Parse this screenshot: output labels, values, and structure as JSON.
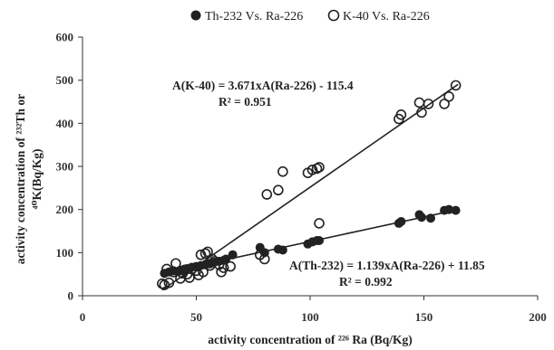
{
  "chart_data": {
    "type": "scatter",
    "xlabel": "activity concentration of ²²⁶ Ra (Bq/Kg)",
    "ylabel_line1": "activity concentration of ²³²Th or",
    "ylabel_line2": "⁴⁰K(Bq/Kg)",
    "xlim": [
      0,
      200
    ],
    "ylim": [
      0,
      600
    ],
    "xticks": [
      "0",
      "50",
      "100",
      "150",
      "200"
    ],
    "yticks": [
      "0",
      "100",
      "200",
      "300",
      "400",
      "500",
      "600"
    ],
    "legend_position": "top",
    "series": [
      {
        "name": "Th-232 Vs. Ra-226",
        "marker": "filled-circle",
        "color": "#222222",
        "trendline": {
          "slope": 1.139,
          "intercept": 11.85,
          "x_range": [
            35,
            164
          ]
        },
        "equation": "A(Th-232) = 1.139xA(Ra-226) + 11.85",
        "r2": "R² = 0.992",
        "points": [
          [
            36,
            52
          ],
          [
            38,
            55
          ],
          [
            40,
            58
          ],
          [
            42,
            56
          ],
          [
            44,
            60
          ],
          [
            45,
            62
          ],
          [
            46,
            63
          ],
          [
            48,
            66
          ],
          [
            50,
            68
          ],
          [
            52,
            70
          ],
          [
            54,
            72
          ],
          [
            55,
            75
          ],
          [
            56,
            74
          ],
          [
            58,
            78
          ],
          [
            60,
            80
          ],
          [
            62,
            82
          ],
          [
            63,
            85
          ],
          [
            66,
            95
          ],
          [
            78,
            112
          ],
          [
            80,
            100
          ],
          [
            86,
            108
          ],
          [
            88,
            106
          ],
          [
            99,
            120
          ],
          [
            101,
            125
          ],
          [
            103,
            128
          ],
          [
            104,
            128
          ],
          [
            139,
            168
          ],
          [
            140,
            172
          ],
          [
            148,
            188
          ],
          [
            149,
            182
          ],
          [
            153,
            180
          ],
          [
            159,
            198
          ],
          [
            161,
            200
          ],
          [
            164,
            198
          ]
        ]
      },
      {
        "name": "K-40 Vs. Ra-226",
        "marker": "open-circle",
        "color": "#222222",
        "trendline": {
          "slope": 3.671,
          "intercept": -115.4,
          "x_range": [
            35,
            165
          ]
        },
        "equation": "A(K-40) = 3.671xA(Ra-226) - 115.4",
        "r2": "R² = 0.951",
        "points": [
          [
            35,
            28
          ],
          [
            36,
            25
          ],
          [
            37,
            62
          ],
          [
            38,
            30
          ],
          [
            40,
            55
          ],
          [
            41,
            75
          ],
          [
            43,
            40
          ],
          [
            44,
            52
          ],
          [
            45,
            60
          ],
          [
            46,
            50
          ],
          [
            47,
            42
          ],
          [
            48,
            62
          ],
          [
            50,
            58
          ],
          [
            51,
            48
          ],
          [
            52,
            95
          ],
          [
            53,
            55
          ],
          [
            54,
            98
          ],
          [
            55,
            102
          ],
          [
            56,
            70
          ],
          [
            57,
            85
          ],
          [
            58,
            80
          ],
          [
            60,
            72
          ],
          [
            61,
            55
          ],
          [
            62,
            65
          ],
          [
            65,
            68
          ],
          [
            78,
            95
          ],
          [
            80,
            85
          ],
          [
            81,
            235
          ],
          [
            86,
            245
          ],
          [
            88,
            288
          ],
          [
            99,
            285
          ],
          [
            101,
            292
          ],
          [
            103,
            295
          ],
          [
            104,
            298
          ],
          [
            104,
            168
          ],
          [
            139,
            410
          ],
          [
            140,
            420
          ],
          [
            148,
            448
          ],
          [
            149,
            425
          ],
          [
            152,
            445
          ],
          [
            159,
            445
          ],
          [
            161,
            462
          ],
          [
            164,
            488
          ]
        ]
      }
    ]
  }
}
